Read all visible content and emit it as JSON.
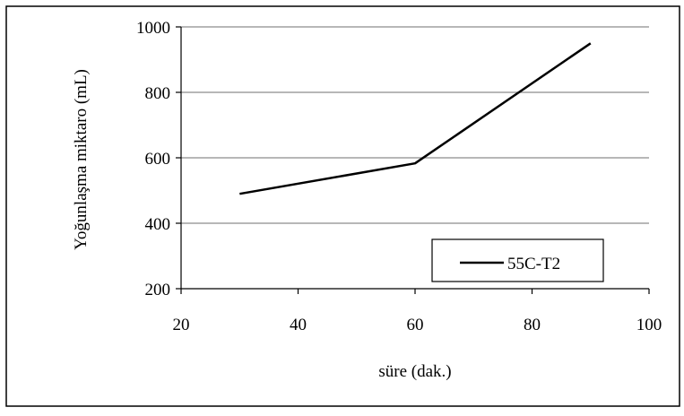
{
  "chart_data": {
    "type": "line",
    "xlabel": "süre (dak.)",
    "ylabel": "Yoğunlaşma miktaro (mL)",
    "xlim": [
      20,
      100
    ],
    "ylim": [
      200,
      1000
    ],
    "x_ticks": [
      "20",
      "40",
      "60",
      "80",
      "100"
    ],
    "y_ticks": [
      "200",
      "400",
      "600",
      "800",
      "1000"
    ],
    "grid": "horizontal",
    "legend_position": "bottom-right",
    "series": [
      {
        "name": "55C-T2",
        "color": "#000000",
        "x": [
          30,
          60,
          90
        ],
        "y": [
          490,
          583,
          950
        ]
      }
    ]
  }
}
